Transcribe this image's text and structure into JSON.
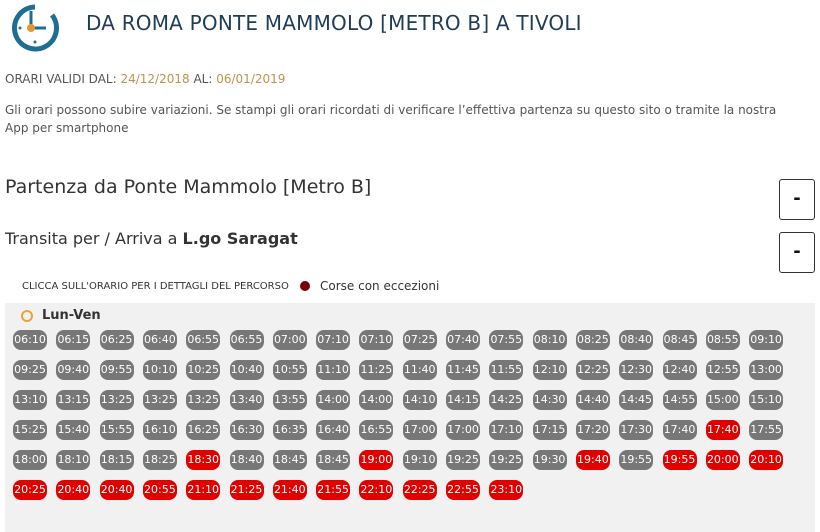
{
  "header": {
    "title": "DA ROMA PONTE MAMMOLO [METRO B] A TIVOLI",
    "logo_icon": "clock-icon"
  },
  "validity": {
    "from_label": "ORARI VALIDI DAL:",
    "from": "24/12/2018",
    "to_label": "AL:",
    "to": "06/01/2019"
  },
  "note": "Gli orari possono subire variazioni. Se stampi gli orari ricordati di verificare l’effettiva partenza su questo sito o tramite la nostra App per smartphone",
  "departure": {
    "label": "Partenza da Ponte Mammolo [Metro B]",
    "toggle": "-"
  },
  "via": {
    "label": "Transita per / Arriva a ",
    "place": "L.go Saragat",
    "toggle": "-"
  },
  "hint": "CLICCA SULL'ORARIO PER I DETTAGLI DEL PERCORSO",
  "legend": {
    "label": "Corse con eccezioni",
    "color": "#7a0000"
  },
  "colors": {
    "normal": "#777777",
    "exception": "#e00000"
  },
  "schedule": {
    "day": "Lun-Ven",
    "times": [
      [
        "06:10",
        0
      ],
      [
        "06:15",
        0
      ],
      [
        "06:25",
        0
      ],
      [
        "06:40",
        0
      ],
      [
        "06:55",
        0
      ],
      [
        "06:55",
        0
      ],
      [
        "07:00",
        0
      ],
      [
        "07:10",
        0
      ],
      [
        "07:10",
        0
      ],
      [
        "07:25",
        0
      ],
      [
        "07:40",
        0
      ],
      [
        "07:55",
        0
      ],
      [
        "08:10",
        0
      ],
      [
        "08:25",
        0
      ],
      [
        "08:40",
        0
      ],
      [
        "08:45",
        0
      ],
      [
        "08:55",
        0
      ],
      [
        "09:10",
        0
      ],
      [
        "09:25",
        0
      ],
      [
        "09:40",
        0
      ],
      [
        "09:55",
        0
      ],
      [
        "10:10",
        0
      ],
      [
        "10:25",
        0
      ],
      [
        "10:40",
        0
      ],
      [
        "10:55",
        0
      ],
      [
        "11:10",
        0
      ],
      [
        "11:25",
        0
      ],
      [
        "11:40",
        0
      ],
      [
        "11:45",
        0
      ],
      [
        "11:55",
        0
      ],
      [
        "12:10",
        0
      ],
      [
        "12:25",
        0
      ],
      [
        "12:30",
        0
      ],
      [
        "12:40",
        0
      ],
      [
        "12:55",
        0
      ],
      [
        "13:00",
        0
      ],
      [
        "13:10",
        0
      ],
      [
        "13:15",
        0
      ],
      [
        "13:25",
        0
      ],
      [
        "13:25",
        0
      ],
      [
        "13:25",
        0
      ],
      [
        "13:40",
        0
      ],
      [
        "13:55",
        0
      ],
      [
        "14:00",
        0
      ],
      [
        "14:00",
        0
      ],
      [
        "14:10",
        0
      ],
      [
        "14:15",
        0
      ],
      [
        "14:25",
        0
      ],
      [
        "14:30",
        0
      ],
      [
        "14:40",
        0
      ],
      [
        "14:45",
        0
      ],
      [
        "14:55",
        0
      ],
      [
        "15:00",
        0
      ],
      [
        "15:10",
        0
      ],
      [
        "15:25",
        0
      ],
      [
        "15:40",
        0
      ],
      [
        "15:55",
        0
      ],
      [
        "16:10",
        0
      ],
      [
        "16:25",
        0
      ],
      [
        "16:30",
        0
      ],
      [
        "16:35",
        0
      ],
      [
        "16:40",
        0
      ],
      [
        "16:55",
        0
      ],
      [
        "17:00",
        0
      ],
      [
        "17:00",
        0
      ],
      [
        "17:10",
        0
      ],
      [
        "17:15",
        0
      ],
      [
        "17:20",
        0
      ],
      [
        "17:30",
        0
      ],
      [
        "17:40",
        0
      ],
      [
        "17:40",
        1
      ],
      [
        "17:55",
        0
      ],
      [
        "18:00",
        0
      ],
      [
        "18:10",
        0
      ],
      [
        "18:15",
        0
      ],
      [
        "18:25",
        0
      ],
      [
        "18:30",
        1
      ],
      [
        "18:40",
        0
      ],
      [
        "18:45",
        0
      ],
      [
        "18:45",
        0
      ],
      [
        "19:00",
        1
      ],
      [
        "19:10",
        0
      ],
      [
        "19:25",
        0
      ],
      [
        "19:25",
        0
      ],
      [
        "19:30",
        0
      ],
      [
        "19:40",
        1
      ],
      [
        "19:55",
        0
      ],
      [
        "19:55",
        1
      ],
      [
        "20:00",
        1
      ],
      [
        "20:10",
        1
      ],
      [
        "20:25",
        1
      ],
      [
        "20:40",
        1
      ],
      [
        "20:40",
        1
      ],
      [
        "20:55",
        1
      ],
      [
        "21:10",
        1
      ],
      [
        "21:25",
        1
      ],
      [
        "21:40",
        1
      ],
      [
        "21:55",
        1
      ],
      [
        "22:10",
        1
      ],
      [
        "22:25",
        1
      ],
      [
        "22:55",
        1
      ],
      [
        "23:10",
        1
      ]
    ]
  }
}
